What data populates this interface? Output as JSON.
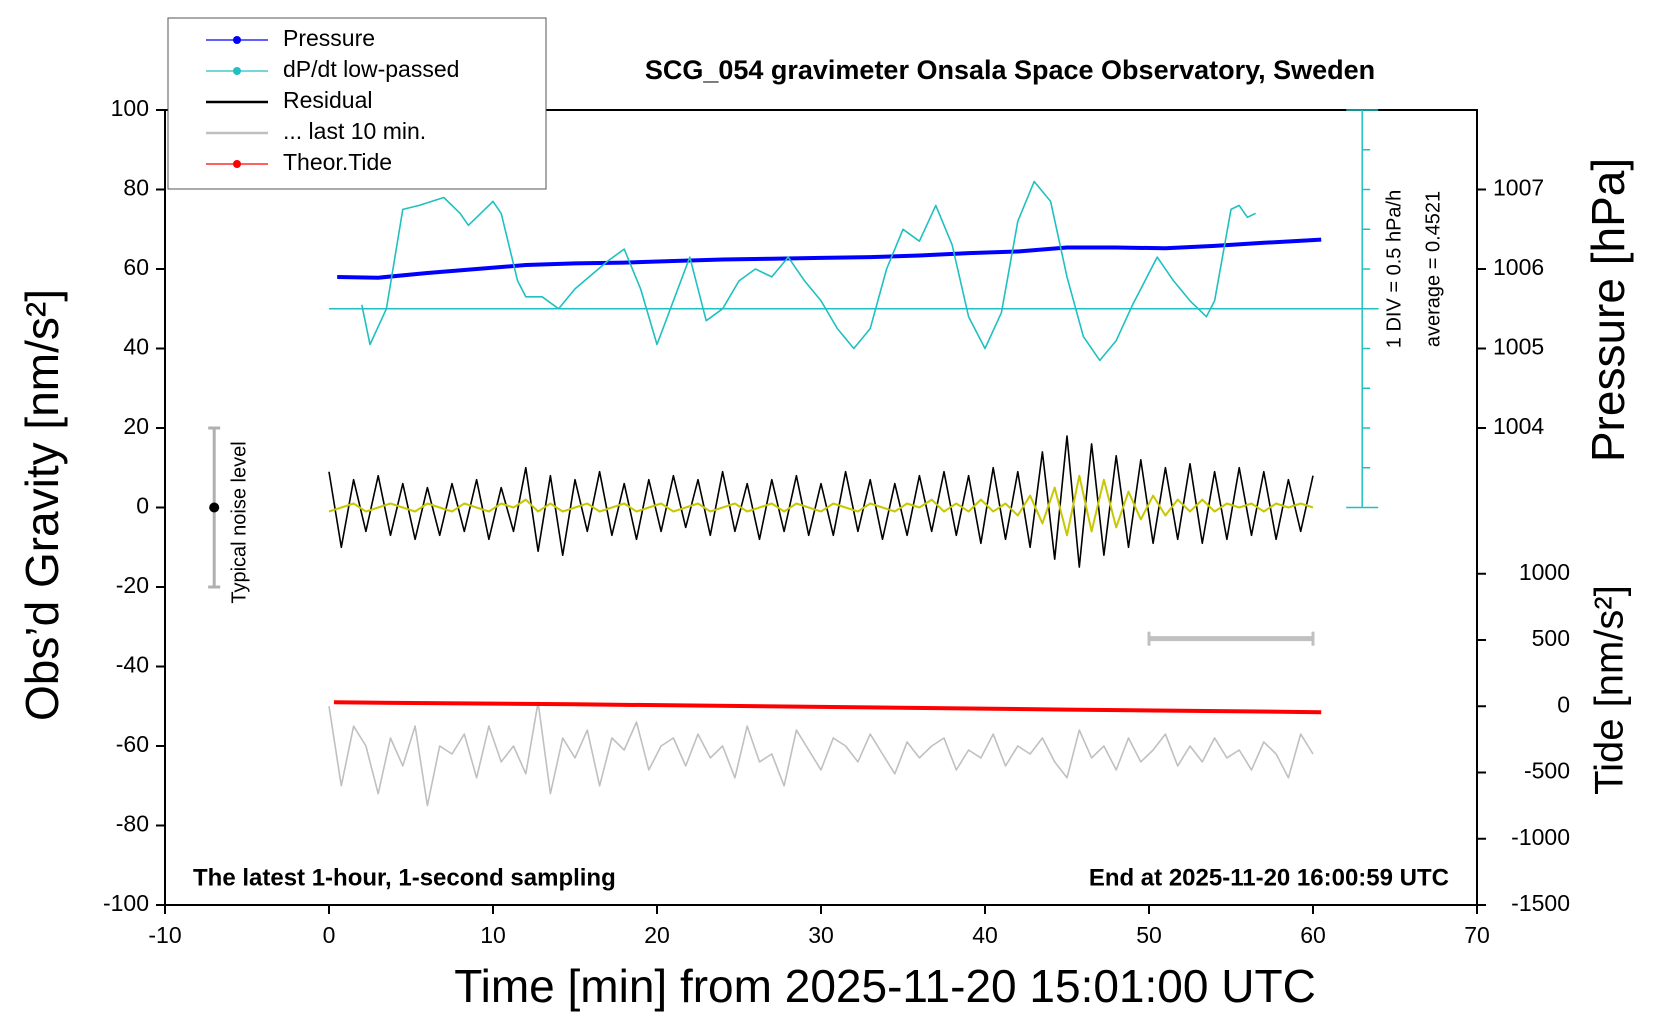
{
  "chart_data": {
    "type": "line",
    "title": "SCG_054 gravimeter Onsala Space Observatory, Sweden",
    "x_label": "Time [min] from 2025-11-20 15:01:00 UTC",
    "y_label": "Obs’d Gravity [nm/s²]",
    "y2_label": "Pressure [hPa]",
    "y3_label": "Tide [nm/s²]",
    "note_left": "The latest 1-hour, 1-second sampling",
    "note_right": "End at 2025-11-20 16:00:59 UTC",
    "dpdt_scale_label": "1 DIV = 0.5 hPa/h",
    "dpdt_average_label": "average = 0.4521",
    "noise_label": "Typical noise level",
    "xlim": [
      -10,
      70
    ],
    "xticks": [
      -10,
      0,
      10,
      20,
      30,
      40,
      50,
      60,
      70
    ],
    "ylim": [
      -100,
      100
    ],
    "yticks": [
      -100,
      -80,
      -60,
      -40,
      -20,
      0,
      20,
      40,
      60,
      80,
      100
    ],
    "y2lim": [
      998,
      1008
    ],
    "y2ticks": [
      1004,
      1005,
      1006,
      1007
    ],
    "y3lim": [
      -1500,
      4500
    ],
    "y3ticks": [
      -1500,
      -1000,
      -500,
      0,
      500,
      1000
    ],
    "legend": "top-left",
    "series": [
      {
        "name": "Pressure",
        "color": "#0000ff",
        "axis": "y2",
        "marker": true,
        "x": [
          0.5,
          3,
          6,
          9,
          12,
          15,
          18,
          21,
          24,
          27,
          30,
          33,
          36,
          39,
          42,
          45,
          48,
          51,
          54,
          57,
          60.5
        ],
        "values": [
          1005.9,
          1005.89,
          1005.95,
          1006.0,
          1006.05,
          1006.07,
          1006.08,
          1006.1,
          1006.12,
          1006.13,
          1006.14,
          1006.15,
          1006.17,
          1006.2,
          1006.22,
          1006.27,
          1006.27,
          1006.26,
          1006.29,
          1006.33,
          1006.37
        ]
      },
      {
        "name": "dP/dt low-passed",
        "color": "#20c0c0",
        "axis": "y",
        "marker": true,
        "x": [
          2,
          2.5,
          3.5,
          4.5,
          5.5,
          7,
          8,
          8.5,
          10,
          10.5,
          11.5,
          12,
          13,
          14,
          15,
          17,
          18,
          19,
          20,
          21,
          22,
          23,
          24,
          25,
          26,
          27,
          28,
          29,
          30,
          31,
          32,
          33,
          34,
          35,
          36,
          37,
          38,
          39,
          40,
          41,
          42,
          43,
          44,
          45,
          46,
          47,
          48,
          49,
          50,
          50.5,
          51.5,
          52.5,
          53.5,
          54,
          55,
          55.5,
          56,
          56.5
        ],
        "values": [
          51,
          41,
          50,
          75,
          76,
          78,
          74,
          71,
          77,
          74,
          57,
          53,
          53,
          50,
          55,
          62,
          65,
          55,
          41,
          52,
          63,
          47,
          50,
          57,
          60,
          58,
          63,
          57,
          52,
          45,
          40,
          45,
          60,
          70,
          67,
          76,
          66,
          48,
          40,
          49,
          72,
          82,
          77,
          58,
          43,
          37,
          42,
          51,
          59,
          63,
          57,
          52,
          48,
          52,
          75,
          76,
          73,
          74
        ]
      },
      {
        "name": "Residual",
        "color": "#000000",
        "axis": "y",
        "marker": false,
        "x": [
          0,
          0.75,
          1.5,
          2.25,
          3,
          3.75,
          4.5,
          5.25,
          6,
          6.75,
          7.5,
          8.25,
          9,
          9.75,
          10.5,
          11.25,
          12,
          12.75,
          13.5,
          14.25,
          15,
          15.75,
          16.5,
          17.25,
          18,
          18.75,
          19.5,
          20.25,
          21,
          21.75,
          22.5,
          23.25,
          24,
          24.75,
          25.5,
          26.25,
          27,
          27.75,
          28.5,
          29.25,
          30,
          30.75,
          31.5,
          32.25,
          33,
          33.75,
          34.5,
          35.25,
          36,
          36.75,
          37.5,
          38.25,
          39,
          39.75,
          40.5,
          41.25,
          42,
          42.75,
          43.5,
          44.25,
          45,
          45.75,
          46.5,
          47.25,
          48,
          48.75,
          49.5,
          50.25,
          51,
          51.75,
          52.5,
          53.25,
          54,
          54.75,
          55.5,
          56.25,
          57,
          57.75,
          58.5,
          59.25,
          60
        ],
        "values": [
          9,
          -10,
          7,
          -6,
          8,
          -7,
          6,
          -8,
          5,
          -7,
          6,
          -6,
          7,
          -8,
          5,
          -6,
          10,
          -11,
          8,
          -12,
          7,
          -6,
          9,
          -7,
          6,
          -8,
          7,
          -6,
          8,
          -5,
          7,
          -7,
          9,
          -6,
          6,
          -8,
          7,
          -6,
          8,
          -7,
          6,
          -7,
          9,
          -6,
          7,
          -8,
          6,
          -7,
          8,
          -6,
          9,
          -7,
          8,
          -9,
          10,
          -8,
          9,
          -10,
          14,
          -13,
          18,
          -15,
          16,
          -12,
          13,
          -10,
          12,
          -9,
          10,
          -8,
          11,
          -9,
          9,
          -8,
          10,
          -7,
          9,
          -8,
          7,
          -6,
          8
        ]
      },
      {
        "color": "#c8c800",
        "axis": "y",
        "marker": false,
        "x": [
          0,
          0.75,
          1.5,
          2.25,
          3,
          3.75,
          4.5,
          5.25,
          6,
          6.75,
          7.5,
          8.25,
          9,
          9.75,
          10.5,
          11.25,
          12,
          12.75,
          13.5,
          14.25,
          15,
          15.75,
          16.5,
          17.25,
          18,
          18.75,
          19.5,
          20.25,
          21,
          21.75,
          22.5,
          23.25,
          24,
          24.75,
          25.5,
          26.25,
          27,
          27.75,
          28.5,
          29.25,
          30,
          30.75,
          31.5,
          32.25,
          33,
          33.75,
          34.5,
          35.25,
          36,
          36.75,
          37.5,
          38.25,
          39,
          39.75,
          40.5,
          41.25,
          42,
          42.75,
          43.5,
          44.25,
          45,
          45.75,
          46.5,
          47.25,
          48,
          48.75,
          49.5,
          50.25,
          51,
          51.75,
          52.5,
          53.25,
          54,
          54.75,
          55.5,
          56.25,
          57,
          57.75,
          58.5,
          59.25,
          60
        ],
        "values": [
          -1,
          0,
          1,
          -1,
          0,
          1,
          0,
          -1,
          1,
          0,
          -1,
          1,
          0,
          -1,
          1,
          0,
          2,
          -1,
          1,
          -1,
          0,
          1,
          -1,
          0,
          1,
          -1,
          0,
          1,
          -1,
          0,
          1,
          -1,
          0,
          1,
          -1,
          0,
          1,
          -1,
          1,
          0,
          -1,
          1,
          0,
          -1,
          1,
          0,
          -1,
          1,
          0,
          2,
          -1,
          1,
          -1,
          2,
          -1,
          1,
          -2,
          3,
          -4,
          5,
          -7,
          8,
          -6,
          7,
          -5,
          4,
          -3,
          3,
          -2,
          2,
          -1,
          2,
          -1,
          1,
          0,
          1,
          -1,
          1,
          0,
          1,
          0
        ]
      },
      {
        "name": "... last 10 min.",
        "color": "#c0c0c0",
        "axis": "y",
        "marker": false,
        "x": [
          0,
          0.75,
          1.5,
          2.25,
          3,
          3.75,
          4.5,
          5.25,
          6,
          6.75,
          7.5,
          8.25,
          9,
          9.75,
          10.5,
          11.25,
          12,
          12.75,
          13.5,
          14.25,
          15,
          15.75,
          16.5,
          17.25,
          18,
          18.75,
          19.5,
          20.25,
          21,
          21.75,
          22.5,
          23.25,
          24,
          24.75,
          25.5,
          26.25,
          27,
          27.75,
          28.5,
          29.25,
          30,
          30.75,
          31.5,
          32.25,
          33,
          33.75,
          34.5,
          35.25,
          36,
          36.75,
          37.5,
          38.25,
          39,
          39.75,
          40.5,
          41.25,
          42,
          42.75,
          43.5,
          44.25,
          45,
          45.75,
          46.5,
          47.25,
          48,
          48.75,
          49.5,
          50.25,
          51,
          51.75,
          52.5,
          53.25,
          54,
          54.75,
          55.5,
          56.25,
          57,
          57.75,
          58.5,
          59.25,
          60
        ],
        "values": [
          -50,
          -70,
          -55,
          -60,
          -72,
          -58,
          -65,
          -55,
          -75,
          -60,
          -62,
          -57,
          -68,
          -55,
          -64,
          -60,
          -67,
          -49,
          -72,
          -58,
          -63,
          -56,
          -70,
          -58,
          -61,
          -54,
          -66,
          -60,
          -58,
          -65,
          -57,
          -63,
          -60,
          -68,
          -55,
          -64,
          -62,
          -70,
          -56,
          -61,
          -66,
          -58,
          -60,
          -64,
          -57,
          -62,
          -67,
          -59,
          -63,
          -60,
          -58,
          -66,
          -61,
          -63,
          -57,
          -65,
          -60,
          -62,
          -58,
          -64,
          -68,
          -56,
          -63,
          -60,
          -66,
          -58,
          -64,
          -61,
          -57,
          -65,
          -60,
          -64,
          -58,
          -63,
          -61,
          -66,
          -59,
          -62,
          -68,
          -57,
          -62
        ]
      },
      {
        "name": "Theor.Tide",
        "color": "#ff0000",
        "axis": "y3",
        "marker": true,
        "x": [
          0.3,
          15,
          30,
          45,
          60.5
        ],
        "values": [
          30,
          15,
          -5,
          -25,
          -45
        ]
      }
    ],
    "dpdt_reference": {
      "x": [
        0,
        64
      ],
      "value": 50,
      "scale_x": 63,
      "scale_ticks": [
        0,
        10,
        20,
        30,
        40,
        50,
        60,
        70,
        80,
        90,
        100
      ]
    },
    "noise_bar": {
      "x": -7,
      "values": [
        -20,
        0,
        20
      ]
    },
    "last10_bar": {
      "x": [
        50,
        60
      ],
      "value": -33
    }
  }
}
